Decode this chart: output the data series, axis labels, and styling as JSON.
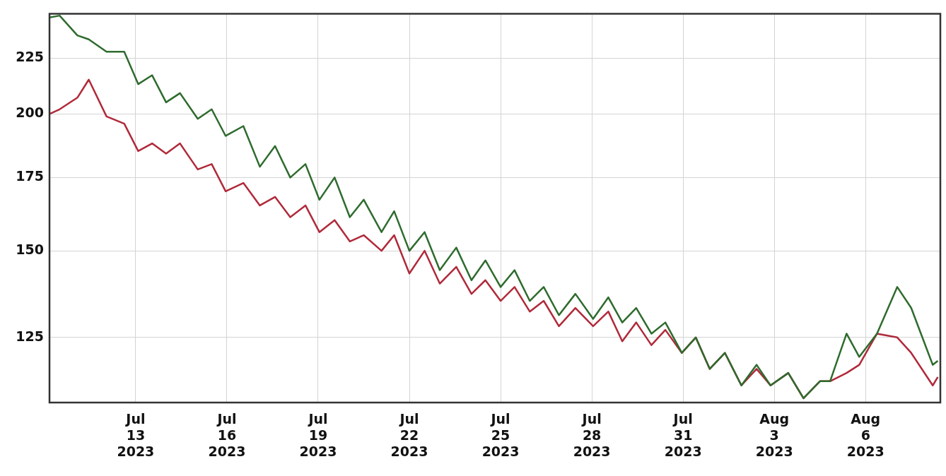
{
  "chart_data": {
    "type": "line",
    "x": [
      "2023-07-10T04:00",
      "2023-07-10T12:00",
      "2023-07-11T02:00",
      "2023-07-11T11:00",
      "2023-07-12T01:00",
      "2023-07-12T15:00",
      "2023-07-13T02:00",
      "2023-07-13T13:00",
      "2023-07-14T00:00",
      "2023-07-14T11:00",
      "2023-07-15T01:00",
      "2023-07-15T12:00",
      "2023-07-15T23:00",
      "2023-07-16T13:00",
      "2023-07-17T02:00",
      "2023-07-17T14:00",
      "2023-07-18T02:00",
      "2023-07-18T14:00",
      "2023-07-19T01:00",
      "2023-07-19T13:00",
      "2023-07-20T01:00",
      "2023-07-20T12:00",
      "2023-07-21T02:00",
      "2023-07-21T12:00",
      "2023-07-22T00:00",
      "2023-07-22T12:00",
      "2023-07-23T00:00",
      "2023-07-23T13:00",
      "2023-07-24T01:00",
      "2023-07-24T12:00",
      "2023-07-25T00:00",
      "2023-07-25T11:00",
      "2023-07-25T23:00",
      "2023-07-26T10:00",
      "2023-07-26T22:00",
      "2023-07-27T11:00",
      "2023-07-28T01:00",
      "2023-07-28T13:00",
      "2023-07-29T00:00",
      "2023-07-29T11:00",
      "2023-07-29T23:00",
      "2023-07-30T10:00",
      "2023-07-30T23:00",
      "2023-07-31T10:00",
      "2023-07-31T21:00",
      "2023-08-01T09:00",
      "2023-08-01T22:00",
      "2023-08-02T10:00",
      "2023-08-02T21:00",
      "2023-08-03T11:00",
      "2023-08-03T23:00",
      "2023-08-04T12:00",
      "2023-08-04T20:00",
      "2023-08-05T09:00",
      "2023-08-05T19:00",
      "2023-08-06T09:00",
      "2023-08-07T01:00",
      "2023-08-07T12:00",
      "2023-08-08T05:00",
      "2023-08-08T09:00"
    ],
    "series": [
      {
        "color": "#2e6b2e",
        "values": [
          245,
          246,
          236,
          234,
          228,
          228,
          213,
          217,
          205,
          209,
          198,
          202,
          191,
          195,
          179,
          187,
          175,
          180,
          167,
          175,
          161,
          167,
          156,
          163,
          150,
          156,
          144,
          151,
          141,
          147,
          139,
          144,
          135,
          139,
          131,
          137,
          130,
          136,
          129,
          133,
          126,
          129,
          121,
          125,
          117,
          121,
          113,
          118,
          113,
          116,
          110,
          114,
          114,
          126,
          120,
          126,
          139,
          133,
          118,
          119
        ]
      },
      {
        "color": "#b02a3a",
        "values": [
          200,
          202,
          207,
          215,
          199,
          196,
          185,
          188,
          184,
          188,
          178,
          180,
          170,
          173,
          165,
          168,
          161,
          165,
          156,
          160,
          153,
          155,
          150,
          155,
          143,
          150,
          140,
          145,
          137,
          141,
          135,
          139,
          132,
          135,
          128,
          133,
          128,
          132,
          124,
          129,
          123,
          127,
          121,
          125,
          117,
          121,
          113,
          117,
          113,
          116,
          110,
          114,
          114,
          116,
          118,
          126,
          125,
          121,
          113,
          115
        ]
      }
    ],
    "xlim": [
      "2023-07-10T04:00",
      "2023-08-08T11:00"
    ],
    "xticks": [
      {
        "value": "2023-07-13",
        "label": "Jul 13 2023"
      },
      {
        "value": "2023-07-16",
        "label": "Jul 16 2023"
      },
      {
        "value": "2023-07-19",
        "label": "Jul 19 2023"
      },
      {
        "value": "2023-07-22",
        "label": "Jul 22 2023"
      },
      {
        "value": "2023-07-25",
        "label": "Jul 25 2023"
      },
      {
        "value": "2023-07-28",
        "label": "Jul 28 2023"
      },
      {
        "value": "2023-07-31",
        "label": "Jul 31 2023"
      },
      {
        "value": "2023-08-03",
        "label": "Aug 3 2023"
      },
      {
        "value": "2023-08-06",
        "label": "Aug 6 2023"
      }
    ],
    "ylim": [
      109,
      247
    ],
    "yticks": [
      125,
      150,
      175,
      200,
      225
    ],
    "log": "y",
    "grid": true,
    "legend": false,
    "marker": "none",
    "line_style": "solid"
  }
}
